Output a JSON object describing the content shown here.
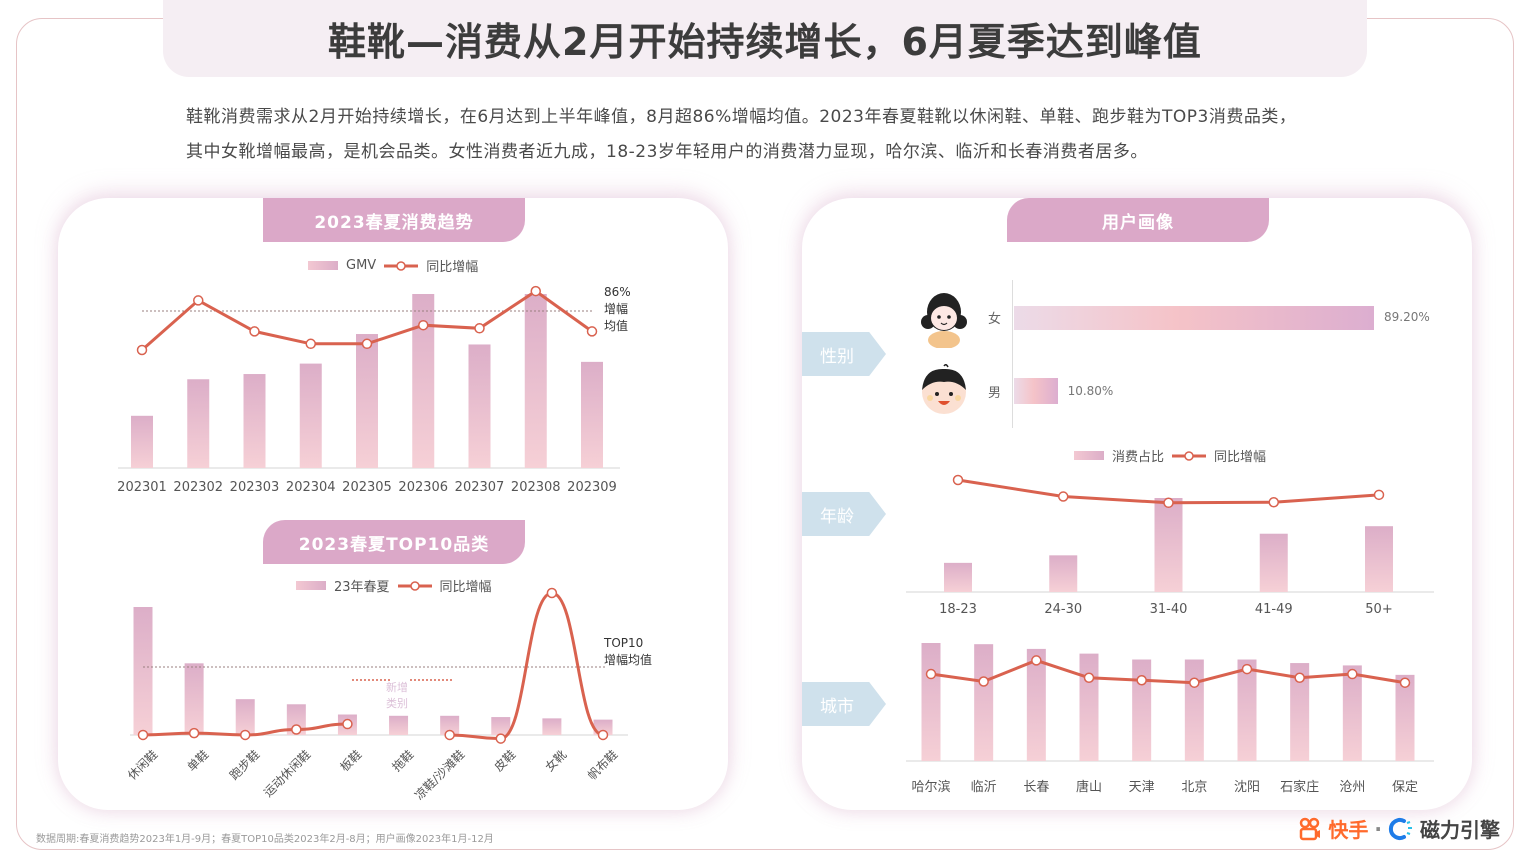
{
  "header": {
    "title": "鞋靴—消费从2月开始持续增长，6月夏季达到峰值",
    "summary_line1": "鞋靴消费需求从2月开始持续增长，在6月达到上半年峰值，8月超86%增幅均值。2023年春夏鞋靴以休闲鞋、单鞋、跑步鞋为TOP3消费品类，",
    "summary_line2": "其中女靴增幅最高，是机会品类。女性消费者近九成，18-23岁年轻用户的消费潜力显现，哈尔滨、临沂和长春消费者居多。"
  },
  "colors": {
    "bar_top": "#dcaec8",
    "bar_bottom": "#f6d0d6",
    "line": "#d9624f",
    "tab": "#dba8c8",
    "row_label": "#cfe1ec",
    "title_bg": "#f5eef3",
    "frame_border": "#e6c4c6"
  },
  "left_panel": {
    "trend_tab": "2023春夏消费趋势",
    "top10_tab": "2023春夏TOP10品类"
  },
  "right_panel": {
    "tab": "用户画像",
    "row_labels": {
      "gender": "性别",
      "age": "年龄",
      "city": "城市"
    },
    "gender": {
      "female_label": "女",
      "male_label": "男",
      "female_value": "89.20%",
      "male_value": "10.80%"
    }
  },
  "chart_data": [
    {
      "id": "trend",
      "type": "bar",
      "title": "2023春夏消费趋势",
      "legend": [
        "GMV",
        "同比增幅"
      ],
      "categories": [
        "202301",
        "202302",
        "202303",
        "202304",
        "202305",
        "202306",
        "202307",
        "202308",
        "202309"
      ],
      "series": [
        {
          "name": "GMV",
          "type": "bar",
          "values": [
            30,
            51,
            54,
            60,
            77,
            100,
            71,
            100,
            61
          ]
        },
        {
          "name": "同比增幅",
          "type": "line",
          "values": [
            80,
            96,
            86,
            82,
            82,
            88,
            87,
            99,
            86
          ]
        }
      ],
      "reference_line": {
        "value": 86,
        "label": "86%\n增幅\n均值",
        "label_lines": [
          "86%",
          "增幅",
          "均值"
        ]
      },
      "ylim": [
        0,
        100
      ]
    },
    {
      "id": "top10",
      "type": "bar",
      "title": "2023春夏TOP10品类",
      "legend": [
        "23年春夏",
        "同比增幅"
      ],
      "categories": [
        "休闲鞋",
        "单鞋",
        "跑步鞋",
        "运动休闲鞋",
        "板鞋",
        "拖鞋",
        "凉鞋/沙滩鞋",
        "皮鞋",
        "女靴",
        "帆布鞋"
      ],
      "series": [
        {
          "name": "23年春夏",
          "type": "bar",
          "values": [
            100,
            56,
            28,
            24,
            16,
            15,
            15,
            14,
            13,
            12
          ]
        },
        {
          "name": "同比增幅",
          "type": "line",
          "values": [
            22,
            23,
            22,
            25,
            28,
            null,
            22,
            20,
            100,
            22
          ]
        }
      ],
      "reference_line": {
        "value": 40,
        "label_lines": [
          "TOP10",
          "增幅均值"
        ]
      },
      "annotation": {
        "text_lines": [
          "新增",
          "类别"
        ],
        "category": "拖鞋"
      },
      "ylim": [
        0,
        100
      ]
    },
    {
      "id": "gender",
      "type": "bar",
      "orientation": "horizontal",
      "categories": [
        "女",
        "男"
      ],
      "values": [
        89.2,
        10.8
      ],
      "labels": [
        "89.20%",
        "10.80%"
      ]
    },
    {
      "id": "age",
      "type": "bar",
      "legend": [
        "消费占比",
        "同比增幅"
      ],
      "categories": [
        "18-23",
        "24-30",
        "31-40",
        "41-49",
        "50+"
      ],
      "series": [
        {
          "name": "消费占比",
          "type": "bar",
          "values": [
            31,
            39,
            100,
            62,
            70
          ]
        },
        {
          "name": "同比增幅",
          "type": "line",
          "values": [
            100,
            71,
            60,
            61,
            74
          ]
        }
      ],
      "ylim": [
        0,
        100
      ]
    },
    {
      "id": "city",
      "type": "bar",
      "categories": [
        "哈尔滨",
        "临沂",
        "长春",
        "唐山",
        "天津",
        "北京",
        "沈阳",
        "石家庄",
        "沧州",
        "保定"
      ],
      "series": [
        {
          "name": "消费占比",
          "type": "bar",
          "values": [
            100,
            99,
            95,
            91,
            86,
            86,
            86,
            83,
            81,
            73
          ]
        },
        {
          "name": "同比增幅",
          "type": "line",
          "values": [
            79,
            73,
            90,
            76,
            74,
            72,
            83,
            76,
            79,
            72
          ]
        }
      ],
      "ylim": [
        0,
        100
      ]
    }
  ],
  "footer": {
    "note": "数据周期:春夏消费趋势2023年1月-9月；春夏TOP10品类2023年2月-8月；用户画像2023年1月-12月",
    "brand_kuaishou": "快手",
    "separator": "·",
    "brand_cili": "磁力引擎"
  }
}
